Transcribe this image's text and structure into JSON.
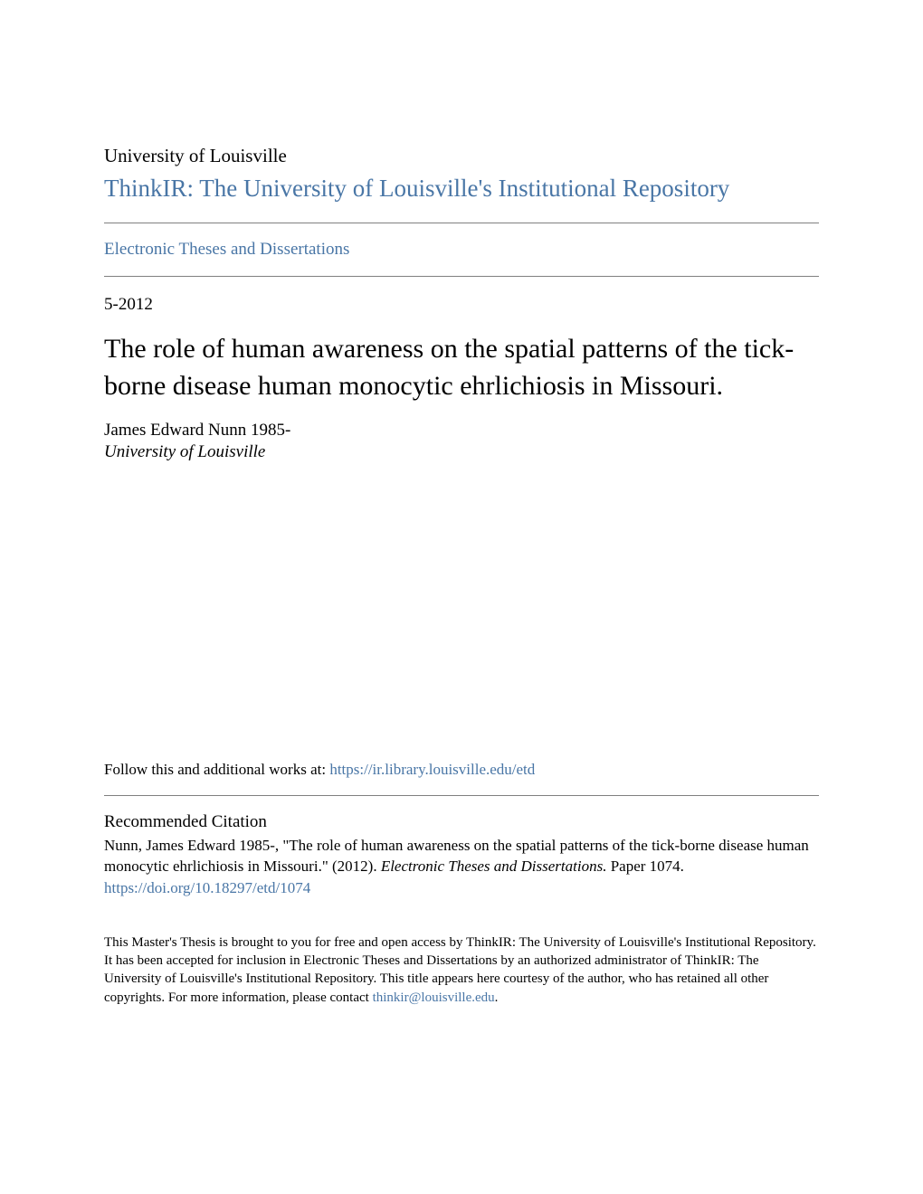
{
  "colors": {
    "link": "#4976a6",
    "text": "#000000",
    "background": "#ffffff",
    "rule": "#808080"
  },
  "typography": {
    "body_family": "Georgia, Times New Roman, serif",
    "university_fontsize": 21,
    "repo_title_fontsize": 27,
    "collection_fontsize": 19,
    "date_fontsize": 19,
    "paper_title_fontsize": 30,
    "author_fontsize": 19,
    "follow_fontsize": 17,
    "citation_heading_fontsize": 19,
    "citation_text_fontsize": 17,
    "footer_fontsize": 15
  },
  "header": {
    "university": "University of Louisville",
    "repository_title": "ThinkIR: The University of Louisville's Institutional Repository",
    "collection": "Electronic Theses and Dissertations"
  },
  "record": {
    "date": "5-2012",
    "title": "The role of human awareness on the spatial patterns of the tick-borne disease human monocytic ehrlichiosis in Missouri.",
    "author": "James Edward Nunn 1985-",
    "affiliation": "University of Louisville"
  },
  "follow": {
    "prefix": "Follow this and additional works at: ",
    "url": "https://ir.library.louisville.edu/etd"
  },
  "citation": {
    "heading": "Recommended Citation",
    "text_part1": "Nunn, James Edward 1985-, \"The role of human awareness on the spatial patterns of the tick-borne disease human monocytic ehrlichiosis in Missouri.\" (2012). ",
    "text_italic": "Electronic Theses and Dissertations.",
    "text_part2": " Paper 1074.",
    "doi": "https://doi.org/10.18297/etd/1074"
  },
  "footer": {
    "text_part1": "This Master's Thesis is brought to you for free and open access by ThinkIR: The University of Louisville's Institutional Repository. It has been accepted for inclusion in Electronic Theses and Dissertations by an authorized administrator of ThinkIR: The University of Louisville's Institutional Repository. This title appears here courtesy of the author, who has retained all other copyrights. For more information, please contact ",
    "email": "thinkir@louisville.edu",
    "text_part2": "."
  }
}
